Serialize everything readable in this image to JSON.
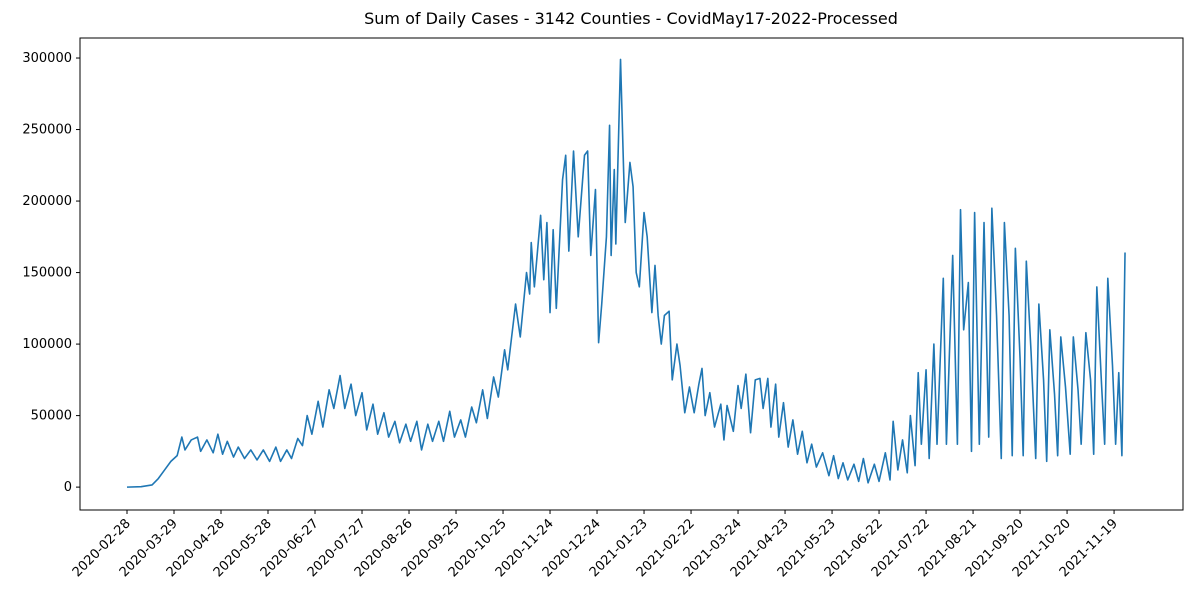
{
  "chart_data": {
    "type": "line",
    "title": "Sum of Daily Cases - 3142 Counties - CovidMay17-2022-Processed",
    "x": [
      "2020-02-28",
      "2020-03-08",
      "2020-03-15",
      "2020-03-19",
      "2020-03-23",
      "2020-03-27",
      "2020-03-31",
      "2020-04-03",
      "2020-04-05",
      "2020-04-09",
      "2020-04-13",
      "2020-04-15",
      "2020-04-19",
      "2020-04-23",
      "2020-04-26",
      "2020-04-29",
      "2020-05-02",
      "2020-05-06",
      "2020-05-09",
      "2020-05-13",
      "2020-05-17",
      "2020-05-21",
      "2020-05-25",
      "2020-05-29",
      "2020-06-02",
      "2020-06-05",
      "2020-06-09",
      "2020-06-12",
      "2020-06-16",
      "2020-06-19",
      "2020-06-22",
      "2020-06-25",
      "2020-06-29",
      "2020-07-02",
      "2020-07-06",
      "2020-07-09",
      "2020-07-13",
      "2020-07-16",
      "2020-07-20",
      "2020-07-23",
      "2020-07-27",
      "2020-07-30",
      "2020-08-03",
      "2020-08-06",
      "2020-08-10",
      "2020-08-13",
      "2020-08-17",
      "2020-08-20",
      "2020-08-24",
      "2020-08-27",
      "2020-08-31",
      "2020-09-03",
      "2020-09-07",
      "2020-09-10",
      "2020-09-14",
      "2020-09-17",
      "2020-09-21",
      "2020-09-24",
      "2020-09-28",
      "2020-10-01",
      "2020-10-05",
      "2020-10-08",
      "2020-10-12",
      "2020-10-15",
      "2020-10-19",
      "2020-10-22",
      "2020-10-26",
      "2020-10-28",
      "2020-11-02",
      "2020-11-05",
      "2020-11-09",
      "2020-11-11",
      "2020-11-12",
      "2020-11-14",
      "2020-11-18",
      "2020-11-20",
      "2020-11-22",
      "2020-11-24",
      "2020-11-26",
      "2020-11-28",
      "2020-12-02",
      "2020-12-04",
      "2020-12-06",
      "2020-12-09",
      "2020-12-12",
      "2020-12-16",
      "2020-12-18",
      "2020-12-20",
      "2020-12-23",
      "2020-12-25",
      "2020-12-27",
      "2020-12-30",
      "2021-01-01",
      "2021-01-02",
      "2021-01-04",
      "2021-01-05",
      "2021-01-08",
      "2021-01-10",
      "2021-01-11",
      "2021-01-14",
      "2021-01-16",
      "2021-01-18",
      "2021-01-20",
      "2021-01-23",
      "2021-01-25",
      "2021-01-28",
      "2021-01-30",
      "2021-02-01",
      "2021-02-03",
      "2021-02-05",
      "2021-02-08",
      "2021-02-10",
      "2021-02-13",
      "2021-02-15",
      "2021-02-18",
      "2021-02-21",
      "2021-02-24",
      "2021-02-27",
      "2021-03-01",
      "2021-03-03",
      "2021-03-06",
      "2021-03-09",
      "2021-03-13",
      "2021-03-15",
      "2021-03-17",
      "2021-03-21",
      "2021-03-24",
      "2021-03-26",
      "2021-03-29",
      "2021-04-01",
      "2021-04-04",
      "2021-04-07",
      "2021-04-09",
      "2021-04-12",
      "2021-04-14",
      "2021-04-17",
      "2021-04-19",
      "2021-04-22",
      "2021-04-25",
      "2021-04-28",
      "2021-05-01",
      "2021-05-04",
      "2021-05-07",
      "2021-05-10",
      "2021-05-13",
      "2021-05-17",
      "2021-05-21",
      "2021-05-24",
      "2021-05-27",
      "2021-05-30",
      "2021-06-02",
      "2021-06-06",
      "2021-06-09",
      "2021-06-12",
      "2021-06-15",
      "2021-06-19",
      "2021-06-22",
      "2021-06-26",
      "2021-06-29",
      "2021-07-01",
      "2021-07-04",
      "2021-07-07",
      "2021-07-10",
      "2021-07-12",
      "2021-07-15",
      "2021-07-17",
      "2021-07-19",
      "2021-07-22",
      "2021-07-24",
      "2021-07-27",
      "2021-07-29",
      "2021-08-02",
      "2021-08-04",
      "2021-08-08",
      "2021-08-11",
      "2021-08-13",
      "2021-08-15",
      "2021-08-18",
      "2021-08-20",
      "2021-08-22",
      "2021-08-25",
      "2021-08-28",
      "2021-08-31",
      "2021-09-02",
      "2021-09-05",
      "2021-09-08",
      "2021-09-10",
      "2021-09-13",
      "2021-09-15",
      "2021-09-17",
      "2021-09-20",
      "2021-09-22",
      "2021-09-24",
      "2021-09-27",
      "2021-09-30",
      "2021-10-02",
      "2021-10-05",
      "2021-10-07",
      "2021-10-09",
      "2021-10-12",
      "2021-10-14",
      "2021-10-16",
      "2021-10-19",
      "2021-10-22",
      "2021-10-24",
      "2021-10-27",
      "2021-10-29",
      "2021-11-01",
      "2021-11-04",
      "2021-11-06",
      "2021-11-08",
      "2021-11-11",
      "2021-11-13",
      "2021-11-15",
      "2021-11-18",
      "2021-11-20",
      "2021-11-22",
      "2021-11-24",
      "2021-11-26"
    ],
    "series": [
      {
        "color": "#1f77b4",
        "values": [
          0,
          300,
          1500,
          6000,
          12000,
          18000,
          22000,
          35000,
          26000,
          33000,
          35000,
          25000,
          33000,
          24000,
          37000,
          23000,
          32000,
          21000,
          28000,
          20000,
          26000,
          19000,
          26000,
          18000,
          28000,
          18000,
          26000,
          20000,
          34000,
          29000,
          50000,
          37000,
          60000,
          42000,
          68000,
          55000,
          78000,
          55000,
          72000,
          50000,
          66000,
          40000,
          58000,
          37000,
          52000,
          35000,
          46000,
          31000,
          44000,
          32000,
          46000,
          26000,
          44000,
          32000,
          46000,
          32000,
          53000,
          35000,
          47000,
          35000,
          56000,
          45000,
          68000,
          48000,
          77000,
          63000,
          96000,
          82000,
          128000,
          105000,
          150000,
          135000,
          171000,
          140000,
          190000,
          145000,
          185000,
          122000,
          180000,
          125000,
          215000,
          232000,
          165000,
          235000,
          175000,
          232000,
          235000,
          162000,
          208000,
          101000,
          128000,
          175000,
          253000,
          162000,
          222000,
          170000,
          299000,
          220000,
          185000,
          227000,
          210000,
          150000,
          140000,
          192000,
          175000,
          122000,
          155000,
          120000,
          100000,
          120000,
          123000,
          75000,
          100000,
          85000,
          52000,
          70000,
          52000,
          72000,
          83000,
          50000,
          66000,
          42000,
          58000,
          33000,
          57000,
          39000,
          71000,
          55000,
          79000,
          38000,
          75000,
          76000,
          55000,
          76000,
          42000,
          72000,
          35000,
          59000,
          28000,
          47000,
          23000,
          39000,
          17000,
          30000,
          14000,
          24000,
          8000,
          22000,
          6000,
          17000,
          5000,
          16000,
          4000,
          20000,
          3000,
          16000,
          4000,
          24000,
          5000,
          46000,
          12000,
          33000,
          10000,
          50000,
          15000,
          80000,
          30000,
          82000,
          20000,
          100000,
          30000,
          146000,
          30000,
          162000,
          30000,
          194000,
          110000,
          143000,
          25000,
          192000,
          30000,
          185000,
          35000,
          195000,
          120000,
          20000,
          185000,
          120000,
          22000,
          167000,
          90000,
          22000,
          158000,
          95000,
          20000,
          128000,
          75000,
          18000,
          110000,
          65000,
          22000,
          105000,
          70000,
          23000,
          105000,
          68000,
          30000,
          108000,
          75000,
          23000,
          140000,
          72000,
          30000,
          146000,
          85000,
          30000,
          80000,
          22000,
          164000
        ]
      }
    ],
    "xlim": [
      "2020-01-29",
      "2022-01-02"
    ],
    "xticks": [
      "2020-02-28",
      "2020-03-29",
      "2020-04-28",
      "2020-05-28",
      "2020-06-27",
      "2020-07-27",
      "2020-08-26",
      "2020-09-25",
      "2020-10-25",
      "2020-11-24",
      "2020-12-24",
      "2021-01-23",
      "2021-02-22",
      "2021-03-24",
      "2021-04-23",
      "2021-05-23",
      "2021-06-22",
      "2021-07-22",
      "2021-08-21",
      "2021-09-20",
      "2021-10-20",
      "2021-11-19"
    ],
    "ylim": [
      -16000,
      314000
    ],
    "yticks": [
      0,
      50000,
      100000,
      150000,
      200000,
      250000,
      300000
    ],
    "grid": false
  }
}
